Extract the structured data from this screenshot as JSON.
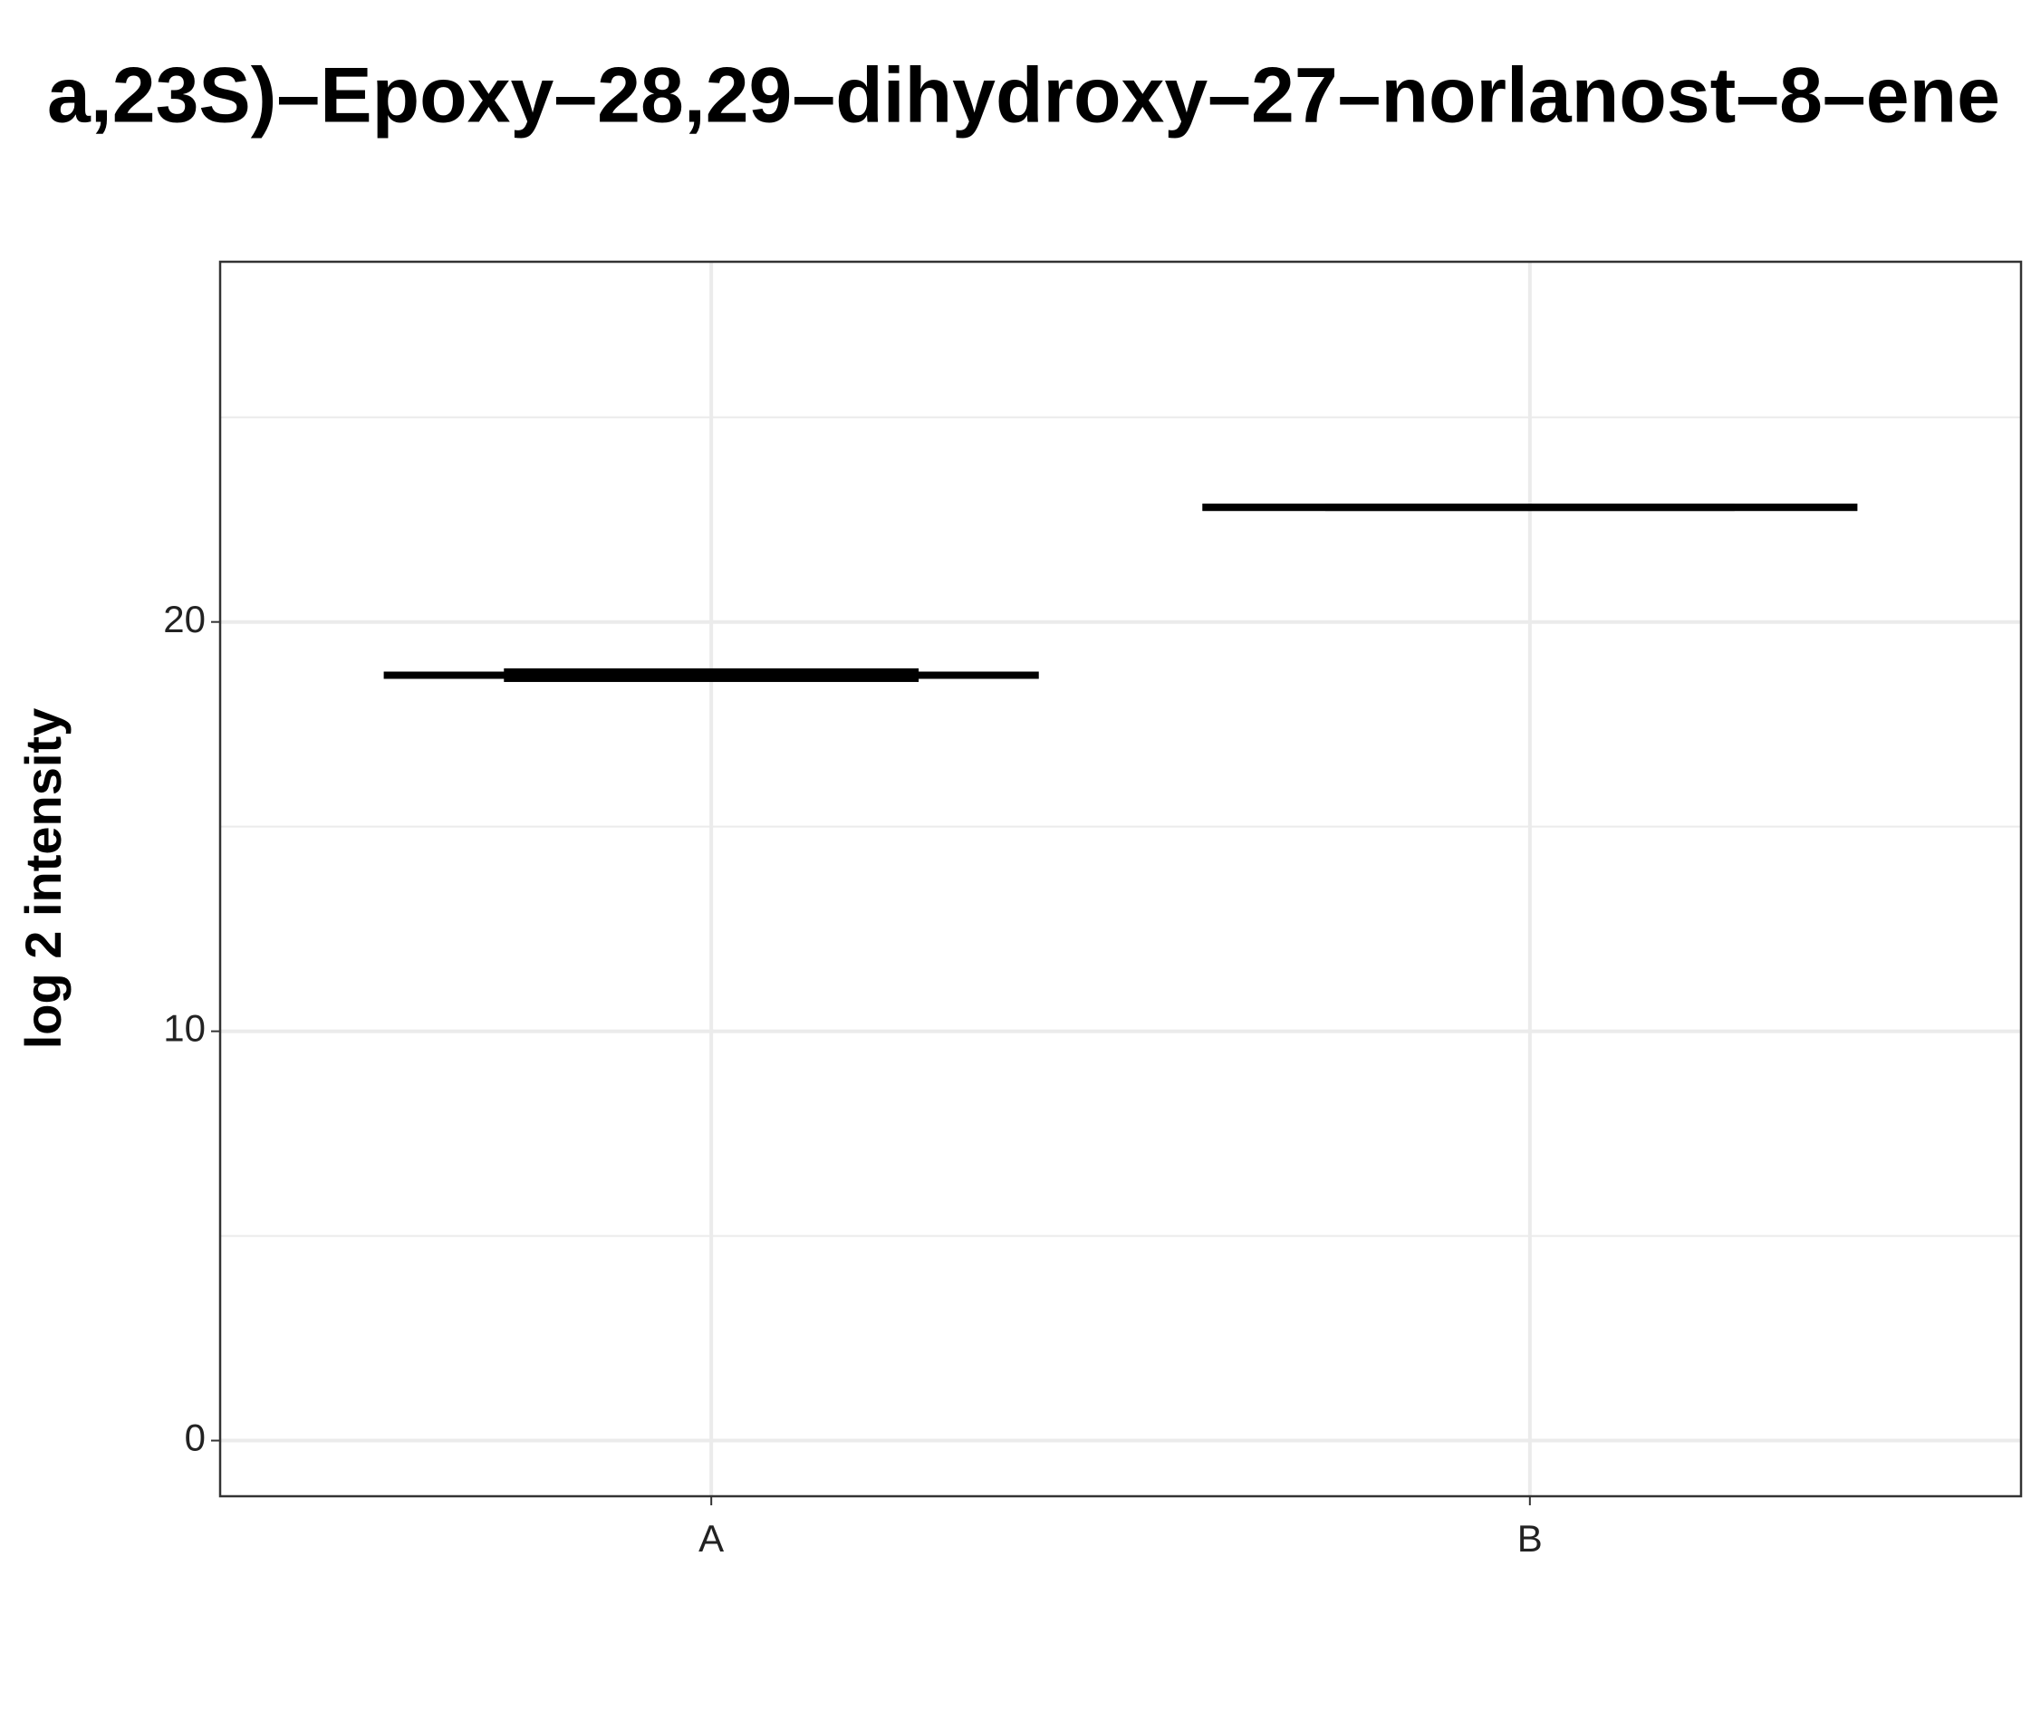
{
  "chart_data": {
    "type": "boxplot",
    "title": "a,23S)–Epoxy–28,29–dihydroxy–27–norlanost–8–ene",
    "y_label": "log 2 intensity",
    "categories": [
      "A",
      "B"
    ],
    "whisker_low": [
      18.7,
      22.8
    ],
    "q1": [
      18.6,
      22.8
    ],
    "median": [
      18.7,
      22.8
    ],
    "q3": [
      18.8,
      22.8
    ],
    "whisker_high": [
      18.7,
      22.8
    ],
    "color": "#000000",
    "ylim": [
      -1.36,
      28.8
    ],
    "yticks": [
      0,
      10,
      20
    ],
    "minor_yticks": [
      5,
      15,
      25
    ],
    "grid": true
  }
}
